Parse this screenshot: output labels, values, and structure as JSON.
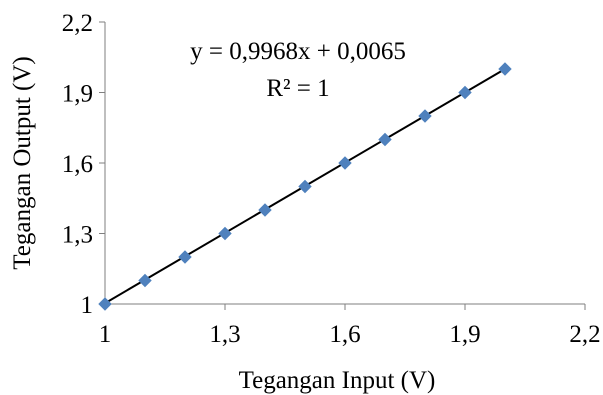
{
  "chart_data": {
    "type": "scatter",
    "xlabel": "Tegangan Input (V)",
    "ylabel": "Tegangan Output (V)",
    "xlim": [
      1,
      2.2
    ],
    "ylim": [
      1,
      2.2
    ],
    "x_ticks": [
      1,
      1.3,
      1.6,
      1.9,
      2.2
    ],
    "y_ticks": [
      1,
      1.3,
      1.6,
      1.9,
      2.2
    ],
    "x_tick_labels": [
      "1",
      "1,3",
      "1,6",
      "1,9",
      "2,2"
    ],
    "y_tick_labels": [
      "1",
      "1,3",
      "1,6",
      "1,9",
      "2,2"
    ],
    "grid": false,
    "series": [
      {
        "x": [
          1.0,
          1.1,
          1.2,
          1.3,
          1.4,
          1.5,
          1.6,
          1.7,
          1.8,
          1.9,
          2.0
        ],
        "y": [
          1.0,
          1.1,
          1.2,
          1.3,
          1.4,
          1.5,
          1.6,
          1.7,
          1.8,
          1.9,
          2.0
        ],
        "marker": "diamond",
        "color": "#4f81bd"
      }
    ],
    "trendline": {
      "slope": 0.9968,
      "intercept": 0.0065,
      "x_range": [
        1.0,
        2.0
      ],
      "color": "#000000"
    },
    "annotations": {
      "equation": "y = 0,9968x + 0,0065",
      "r_squared": "R² = 1"
    }
  }
}
